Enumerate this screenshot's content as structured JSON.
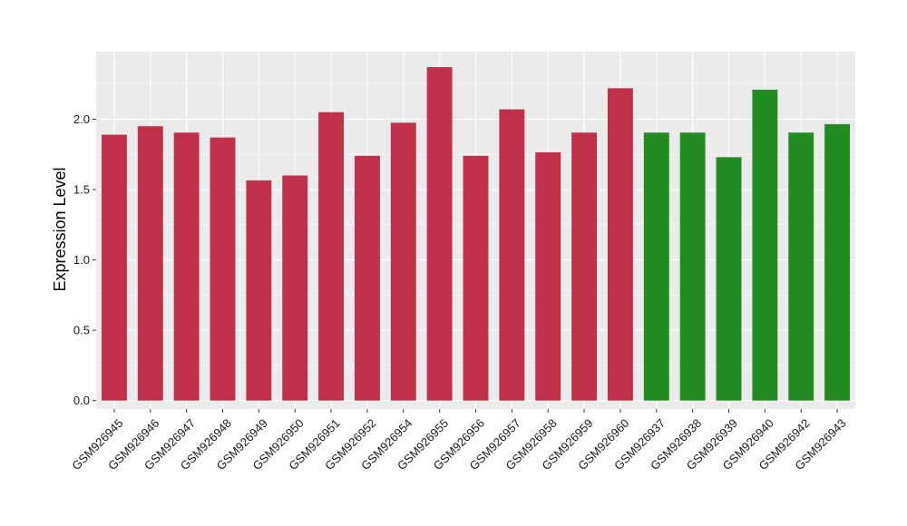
{
  "chart_data": {
    "type": "bar",
    "ylabel": "Expression Level",
    "xlabel": "",
    "ylim": [
      -0.06,
      2.48
    ],
    "yticks": [
      0.0,
      0.5,
      1.0,
      1.5,
      2.0
    ],
    "ytick_labels": [
      "0.0",
      "0.5",
      "1.0",
      "1.5",
      "2.0"
    ],
    "grid": true,
    "panel_background": "#ebebeb",
    "grid_color": "#ffffff",
    "categories": [
      "GSM926945",
      "GSM926946",
      "GSM926947",
      "GSM926948",
      "GSM926949",
      "GSM926950",
      "GSM926951",
      "GSM926952",
      "GSM926954",
      "GSM926955",
      "GSM926956",
      "GSM926957",
      "GSM926958",
      "GSM926959",
      "GSM926960",
      "GSM926937",
      "GSM926938",
      "GSM926939",
      "GSM926940",
      "GSM926942",
      "GSM926943"
    ],
    "values": [
      1.89,
      1.95,
      1.905,
      1.87,
      1.565,
      1.6,
      2.05,
      1.74,
      1.975,
      2.37,
      1.74,
      2.07,
      1.765,
      1.905,
      2.22,
      1.905,
      1.905,
      1.73,
      2.21,
      1.905,
      1.965
    ],
    "bar_colors": [
      "#c0304a",
      "#c0304a",
      "#c0304a",
      "#c0304a",
      "#c0304a",
      "#c0304a",
      "#c0304a",
      "#c0304a",
      "#c0304a",
      "#c0304a",
      "#c0304a",
      "#c0304a",
      "#c0304a",
      "#c0304a",
      "#c0304a",
      "#228b22",
      "#228b22",
      "#228b22",
      "#228b22",
      "#228b22",
      "#228b22"
    ]
  }
}
